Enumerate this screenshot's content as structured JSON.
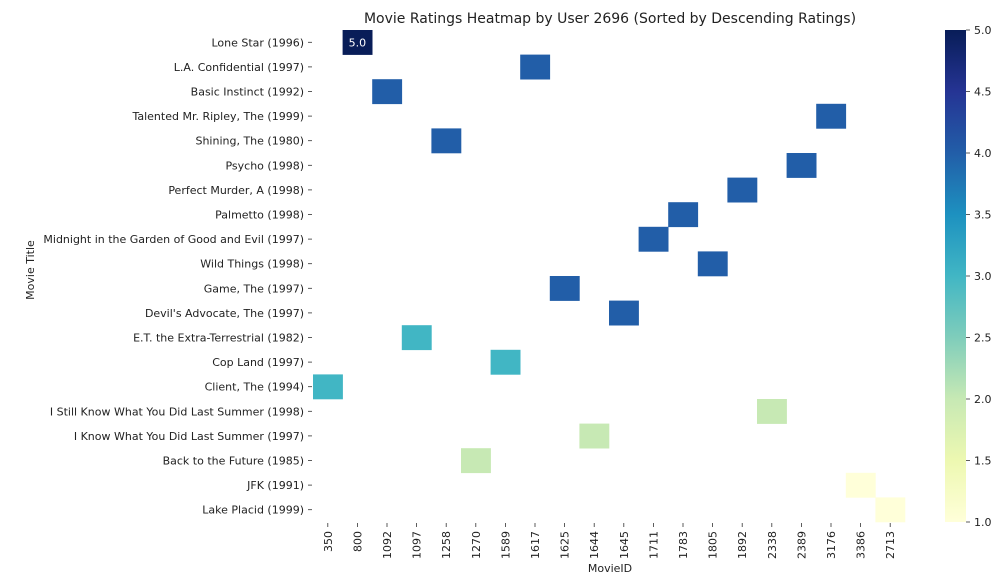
{
  "chart_data": {
    "type": "heatmap",
    "title": "Movie Ratings Heatmap by User 2696 (Sorted by Descending Ratings)",
    "xlabel": "MovieID",
    "ylabel": "Movie Title",
    "x": [
      "350",
      "800",
      "1092",
      "1097",
      "1258",
      "1270",
      "1589",
      "1617",
      "1625",
      "1644",
      "1645",
      "1711",
      "1783",
      "1805",
      "1892",
      "2338",
      "2389",
      "3176",
      "3386",
      "2713"
    ],
    "y": [
      "Lone Star (1996)",
      "L.A. Confidential (1997)",
      "Basic Instinct (1992)",
      "Talented Mr. Ripley, The (1999)",
      "Shining, The (1980)",
      "Psycho (1998)",
      "Perfect Murder, A (1998)",
      "Palmetto (1998)",
      "Midnight in the Garden of Good and Evil (1997)",
      "Wild Things (1998)",
      "Game, The (1997)",
      "Devil's Advocate, The (1997)",
      "E.T. the Extra-Terrestrial (1982)",
      "Cop Land (1997)",
      "Client, The (1994)",
      "I Still Know What You Did Last Summer (1998)",
      "I Know What You Did Last Summer (1997)",
      "Back to the Future (1985)",
      "JFK (1991)",
      "Lake Placid (1999)"
    ],
    "cells": [
      {
        "row": 0,
        "col": 1,
        "value": 5.0,
        "label": "5.0"
      },
      {
        "row": 1,
        "col": 7,
        "value": 4.0
      },
      {
        "row": 2,
        "col": 2,
        "value": 4.0
      },
      {
        "row": 3,
        "col": 17,
        "value": 4.0
      },
      {
        "row": 4,
        "col": 4,
        "value": 4.0
      },
      {
        "row": 5,
        "col": 16,
        "value": 4.0
      },
      {
        "row": 6,
        "col": 14,
        "value": 4.0
      },
      {
        "row": 7,
        "col": 12,
        "value": 4.0
      },
      {
        "row": 8,
        "col": 11,
        "value": 4.0
      },
      {
        "row": 9,
        "col": 13,
        "value": 4.0
      },
      {
        "row": 10,
        "col": 8,
        "value": 4.0
      },
      {
        "row": 11,
        "col": 10,
        "value": 4.0
      },
      {
        "row": 12,
        "col": 3,
        "value": 3.0
      },
      {
        "row": 13,
        "col": 6,
        "value": 3.0
      },
      {
        "row": 14,
        "col": 0,
        "value": 3.0
      },
      {
        "row": 15,
        "col": 15,
        "value": 2.0
      },
      {
        "row": 16,
        "col": 9,
        "value": 2.0
      },
      {
        "row": 17,
        "col": 5,
        "value": 2.0
      },
      {
        "row": 18,
        "col": 18,
        "value": 1.0
      },
      {
        "row": 19,
        "col": 19,
        "value": 1.0
      }
    ],
    "colorbar": {
      "min": 1.0,
      "max": 5.0,
      "ticks": [
        "1.0",
        "1.5",
        "2.0",
        "2.5",
        "3.0",
        "3.5",
        "4.0",
        "4.5",
        "5.0"
      ],
      "colormap": "YlGnBu",
      "stops": [
        "#ffffd9",
        "#edf8b1",
        "#c7e9b4",
        "#7fcdbb",
        "#41b6c4",
        "#1d91c0",
        "#225ea8",
        "#253494",
        "#081d58"
      ]
    },
    "grid": false
  }
}
